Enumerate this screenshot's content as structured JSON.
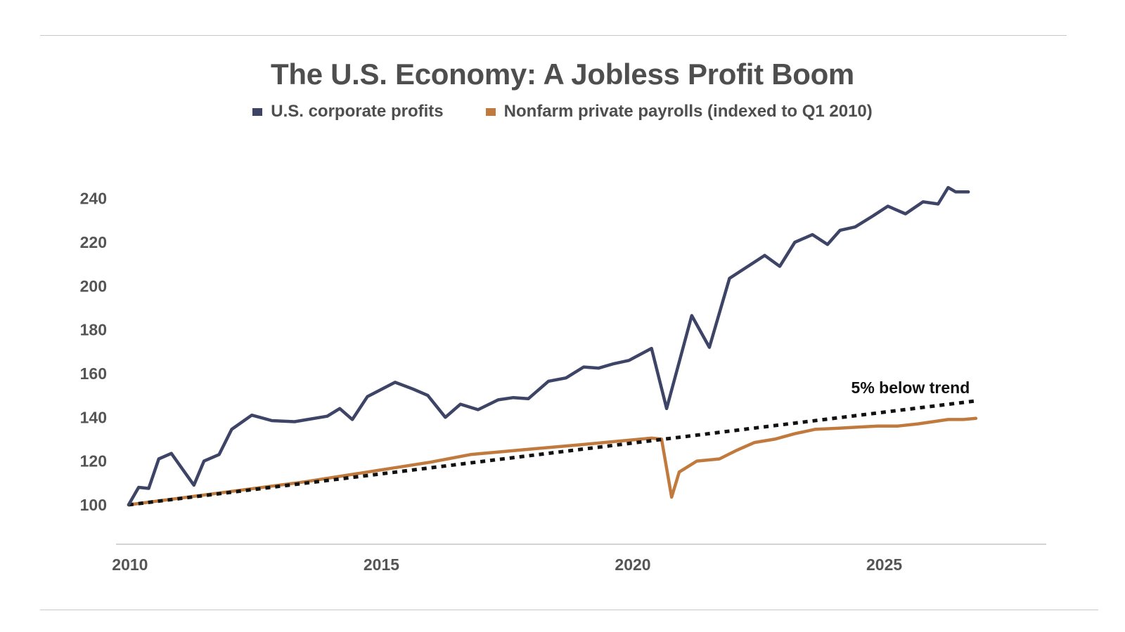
{
  "chart_data": {
    "type": "line",
    "title": "The U.S. Economy: A Jobless Profit Boom",
    "xlabel": "",
    "ylabel": "",
    "xlim": [
      2009.75,
      2028.25
    ],
    "ylim": [
      82,
      246
    ],
    "x_ticks": [
      2010,
      2015,
      2020,
      2025
    ],
    "y_ticks": [
      100,
      120,
      140,
      160,
      180,
      200,
      220,
      240
    ],
    "legend_position": "top-center",
    "grid": false,
    "series": [
      {
        "name": "U.S. corporate profits",
        "color": "#3d4466",
        "x": [
          2010.0,
          2010.2,
          2010.4,
          2010.6,
          2010.85,
          2011.3,
          2011.5,
          2011.8,
          2012.05,
          2012.45,
          2012.85,
          2013.3,
          2013.95,
          2014.2,
          2014.45,
          2014.75,
          2015.3,
          2015.65,
          2015.95,
          2016.3,
          2016.6,
          2016.95,
          2017.35,
          2017.65,
          2017.95,
          2018.35,
          2018.7,
          2019.05,
          2019.35,
          2019.65,
          2019.95,
          2020.4,
          2020.7,
          2021.2,
          2021.55,
          2021.95,
          2022.35,
          2022.65,
          2022.95,
          2023.25,
          2023.6,
          2023.9,
          2024.15,
          2024.45,
          2024.8,
          2025.1,
          2025.45,
          2025.8,
          2026.1,
          2026.3,
          2026.45,
          2026.7
        ],
        "values": [
          100,
          108,
          107.5,
          121,
          123.5,
          109,
          120,
          123,
          134.5,
          141,
          138.5,
          138,
          140.5,
          144,
          139,
          149.5,
          156,
          153,
          150,
          140,
          146,
          143.5,
          148,
          149,
          148.5,
          156.5,
          158,
          163,
          162.5,
          164.5,
          166,
          171.5,
          144,
          186.5,
          172,
          203.5,
          209.5,
          214,
          209,
          220,
          223.5,
          219,
          225.5,
          227,
          232,
          236.5,
          233,
          238.5,
          237.5,
          245,
          243,
          243
        ]
      },
      {
        "name": "Nonfarm private payrolls (indexed to Q1 2010)",
        "color": "#c07a3e",
        "x": [
          2010.0,
          2013.5,
          2016.0,
          2016.8,
          2018.0,
          2019.0,
          2020.4,
          2020.6,
          2020.8,
          2020.95,
          2021.3,
          2021.75,
          2022.1,
          2022.45,
          2022.85,
          2023.25,
          2023.65,
          2024.1,
          2024.5,
          2024.9,
          2025.3,
          2025.7,
          2026.0,
          2026.3,
          2026.6,
          2026.85
        ],
        "values": [
          100,
          110.5,
          119.5,
          123,
          125.5,
          127.5,
          130.5,
          130,
          103.5,
          115,
          120,
          121,
          125,
          128.5,
          130,
          132.5,
          134.5,
          135,
          135.5,
          136,
          136,
          137,
          138,
          139,
          139,
          139.5
        ]
      },
      {
        "name": "trend",
        "color": "#111111",
        "style": "dotted",
        "x": [
          2010.0,
          2026.85
        ],
        "values": [
          100,
          147.5
        ]
      }
    ],
    "annotations": [
      {
        "text": "5% below trend",
        "x": 2025.55,
        "y": 151
      }
    ]
  },
  "legend": {
    "items": [
      {
        "label": "U.S. corporate profits",
        "color": "#3d4466"
      },
      {
        "label": "Nonfarm private payrolls (indexed to Q1 2010)",
        "color": "#c07a3e"
      }
    ]
  }
}
